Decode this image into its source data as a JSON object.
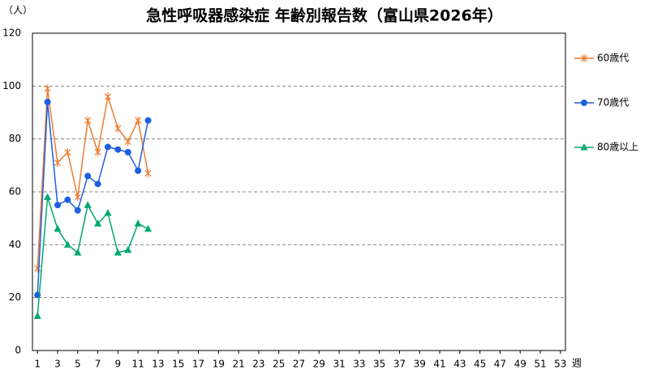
{
  "chart_data": {
    "type": "line",
    "title": "急性呼吸器感染症 年齢別報告数（富山県2026年）",
    "y_label": "（人）",
    "x_label": "週",
    "x": [
      1,
      2,
      3,
      4,
      5,
      6,
      7,
      8,
      9,
      10,
      11,
      12
    ],
    "xlim": [
      0.5,
      53.5
    ],
    "xticks": [
      1,
      3,
      5,
      7,
      9,
      11,
      13,
      15,
      17,
      19,
      21,
      23,
      25,
      27,
      29,
      31,
      33,
      35,
      37,
      39,
      41,
      43,
      45,
      47,
      49,
      51,
      53
    ],
    "ylim": [
      0,
      120
    ],
    "yticks": [
      0,
      20,
      40,
      60,
      80,
      100,
      120
    ],
    "grid": true,
    "legend": "right",
    "series": [
      {
        "name": "60歳代",
        "color": "#ED7D31",
        "marker": "asterisk",
        "values": [
          31,
          99,
          71,
          75,
          58,
          87,
          75,
          96,
          84,
          79,
          87,
          67
        ]
      },
      {
        "name": "70歳代",
        "color": "#1F5FE0",
        "marker": "circle",
        "values": [
          21,
          94,
          55,
          57,
          53,
          66,
          63,
          77,
          76,
          75,
          68,
          87
        ]
      },
      {
        "name": "80歳以上",
        "color": "#00A870",
        "marker": "triangle",
        "values": [
          13,
          58,
          46,
          40,
          37,
          55,
          48,
          52,
          37,
          38,
          48,
          46
        ]
      }
    ]
  }
}
